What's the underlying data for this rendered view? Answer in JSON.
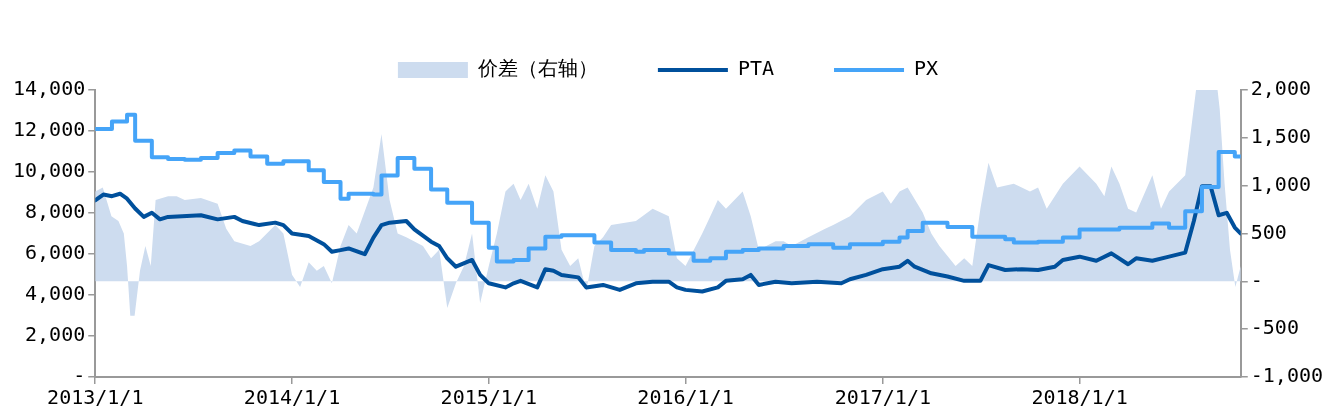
{
  "chart_data": {
    "type": "line",
    "legend": "top",
    "grid": false,
    "xlim": [
      "2013-01-01",
      "2018-10-27"
    ],
    "xticks": [
      {
        "value": "2013-01-01",
        "label": "2013/1/1"
      },
      {
        "value": "2014-01-01",
        "label": "2014/1/1"
      },
      {
        "value": "2015-01-01",
        "label": "2015/1/1"
      },
      {
        "value": "2016-01-01",
        "label": "2016/1/1"
      },
      {
        "value": "2017-01-01",
        "label": "2017/1/1"
      },
      {
        "value": "2018-01-01",
        "label": "2018/1/1"
      }
    ],
    "ylim": [
      0,
      14000
    ],
    "yticks": [
      {
        "value": 0,
        "label": "-"
      },
      {
        "value": 2000,
        "label": "2,000"
      },
      {
        "value": 4000,
        "label": "4,000"
      },
      {
        "value": 6000,
        "label": "6,000"
      },
      {
        "value": 8000,
        "label": "8,000"
      },
      {
        "value": 10000,
        "label": "10,000"
      },
      {
        "value": 12000,
        "label": "12,000"
      },
      {
        "value": 14000,
        "label": "14,000"
      }
    ],
    "y2lim": [
      -1000,
      2000
    ],
    "y2ticks": [
      {
        "value": -1000,
        "label": "-1,000"
      },
      -500,
      {
        "value": 0,
        "label": "-"
      },
      500,
      {
        "value": 1000,
        "label": "1,000"
      },
      {
        "value": 1500,
        "label": "1,500"
      },
      {
        "value": 2000,
        "label": "2,000"
      }
    ],
    "series": [
      {
        "name": "价差（右轴）",
        "type": "area",
        "axis": "y2",
        "color": "#cddcef",
        "x": [
          "2013-01-01",
          "2013-01-15",
          "2013-01-31",
          "2013-02-13",
          "2013-02-23",
          "2013-03-01",
          "2013-03-07",
          "2013-03-15",
          "2013-03-25",
          "2013-04-04",
          "2013-04-14",
          "2013-04-23",
          "2013-05-16",
          "2013-06-01",
          "2013-06-16",
          "2013-07-16",
          "2013-08-16",
          "2013-09-01",
          "2013-09-16",
          "2013-10-16",
          "2013-11-01",
          "2013-12-01",
          "2013-12-16",
          "2014-01-01",
          "2014-01-16",
          "2014-02-01",
          "2014-02-16",
          "2014-03-01",
          "2014-03-16",
          "2014-04-01",
          "2014-04-16",
          "2014-05-01",
          "2014-06-01",
          "2014-06-16",
          "2014-07-01",
          "2014-07-16",
          "2014-08-01",
          "2014-09-01",
          "2014-09-16",
          "2014-10-01",
          "2014-10-16",
          "2014-11-01",
          "2014-11-16",
          "2014-12-01",
          "2014-12-16",
          "2015-01-01",
          "2015-01-16",
          "2015-02-01",
          "2015-02-16",
          "2015-03-01",
          "2015-03-16",
          "2015-04-01",
          "2015-04-16",
          "2015-05-01",
          "2015-05-16",
          "2015-06-01",
          "2015-06-16",
          "2015-07-01",
          "2015-07-16",
          "2015-08-01",
          "2015-08-16",
          "2015-10-01",
          "2015-11-01",
          "2015-12-01",
          "2015-12-16",
          "2016-01-01",
          "2016-02-01",
          "2016-02-16",
          "2016-03-01",
          "2016-03-16",
          "2016-04-16",
          "2016-05-01",
          "2016-05-16",
          "2016-06-16",
          "2016-07-01",
          "2016-07-16",
          "2016-08-16",
          "2016-09-16",
          "2016-10-01",
          "2016-11-01",
          "2016-12-01",
          "2017-01-01",
          "2017-01-16",
          "2017-02-01",
          "2017-02-16",
          "2017-03-16",
          "2017-04-01",
          "2017-04-16",
          "2017-05-16",
          "2017-06-01",
          "2017-06-16",
          "2017-07-01",
          "2017-07-16",
          "2017-08-01",
          "2017-09-01",
          "2017-10-01",
          "2017-10-16",
          "2017-11-01",
          "2017-12-01",
          "2018-01-01",
          "2018-02-01",
          "2018-02-16",
          "2018-03-01",
          "2018-03-16",
          "2018-04-01",
          "2018-04-16",
          "2018-05-16",
          "2018-06-01",
          "2018-06-16",
          "2018-07-16",
          "2018-07-24",
          "2018-08-05",
          "2018-09-14",
          "2018-09-18",
          "2018-09-27",
          "2018-10-07",
          "2018-10-17",
          "2018-10-27"
        ],
        "values": [
          940,
          980,
          680,
          630,
          500,
          160,
          -360,
          -360,
          110,
          370,
          160,
          850,
          890,
          890,
          850,
          870,
          810,
          550,
          420,
          370,
          420,
          590,
          500,
          70,
          -60,
          200,
          110,
          160,
          -20,
          370,
          590,
          500,
          980,
          1540,
          850,
          500,
          460,
          370,
          240,
          330,
          -280,
          -20,
          160,
          500,
          -230,
          160,
          500,
          940,
          1020,
          850,
          1020,
          760,
          1110,
          940,
          330,
          160,
          240,
          -100,
          370,
          460,
          590,
          630,
          760,
          680,
          240,
          160,
          500,
          680,
          850,
          760,
          940,
          680,
          330,
          420,
          420,
          370,
          460,
          550,
          590,
          680,
          850,
          940,
          810,
          940,
          980,
          720,
          500,
          370,
          160,
          240,
          160,
          760,
          1240,
          980,
          1020,
          940,
          980,
          760,
          1020,
          1200,
          1020,
          890,
          1200,
          1020,
          760,
          720,
          1110,
          760,
          940,
          1110,
          1460,
          2000,
          2000,
          1800,
          1020,
          330,
          -60,
          160
        ]
      },
      {
        "name": "PTA",
        "type": "line",
        "color": "#00509c",
        "x": [
          "2013-01-01",
          "2013-01-16",
          "2013-02-01",
          "2013-02-16",
          "2013-03-01",
          "2013-03-16",
          "2013-04-01",
          "2013-04-16",
          "2013-05-01",
          "2013-05-16",
          "2013-07-16",
          "2013-08-16",
          "2013-09-16",
          "2013-10-01",
          "2013-11-01",
          "2013-12-01",
          "2013-12-16",
          "2014-01-01",
          "2014-02-01",
          "2014-03-01",
          "2014-03-16",
          "2014-04-01",
          "2014-04-16",
          "2014-05-16",
          "2014-06-01",
          "2014-06-16",
          "2014-07-01",
          "2014-08-01",
          "2014-08-16",
          "2014-09-16",
          "2014-10-01",
          "2014-10-16",
          "2014-11-01",
          "2014-12-01",
          "2014-12-16",
          "2015-01-01",
          "2015-02-01",
          "2015-02-16",
          "2015-03-01",
          "2015-04-01",
          "2015-04-16",
          "2015-05-01",
          "2015-05-16",
          "2015-06-16",
          "2015-07-01",
          "2015-08-01",
          "2015-09-01",
          "2015-10-01",
          "2015-11-01",
          "2015-12-01",
          "2015-12-16",
          "2016-01-01",
          "2016-02-01",
          "2016-03-01",
          "2016-03-16",
          "2016-04-16",
          "2016-05-01",
          "2016-05-16",
          "2016-06-16",
          "2016-07-16",
          "2016-09-01",
          "2016-10-16",
          "2016-11-01",
          "2016-12-01",
          "2017-01-01",
          "2017-02-01",
          "2017-02-16",
          "2017-03-01",
          "2017-04-01",
          "2017-05-01",
          "2017-06-01",
          "2017-07-01",
          "2017-07-16",
          "2017-08-16",
          "2017-09-16",
          "2017-10-16",
          "2017-11-16",
          "2017-12-01",
          "2018-01-01",
          "2018-02-01",
          "2018-03-01",
          "2018-04-01",
          "2018-04-16",
          "2018-05-16",
          "2018-06-16",
          "2018-07-16",
          "2018-08-01",
          "2018-08-16",
          "2018-09-01",
          "2018-09-16",
          "2018-10-01",
          "2018-10-16",
          "2018-10-27"
        ],
        "values": [
          8620,
          8900,
          8820,
          8940,
          8700,
          8220,
          7810,
          8010,
          7690,
          7810,
          7890,
          7690,
          7810,
          7610,
          7410,
          7530,
          7410,
          7000,
          6880,
          6480,
          6110,
          6190,
          6270,
          5990,
          6800,
          7410,
          7530,
          7610,
          7200,
          6600,
          6390,
          5790,
          5380,
          5710,
          4980,
          4570,
          4370,
          4570,
          4690,
          4370,
          5260,
          5180,
          4980,
          4860,
          4370,
          4490,
          4250,
          4570,
          4650,
          4650,
          4370,
          4250,
          4170,
          4370,
          4690,
          4770,
          4980,
          4490,
          4650,
          4570,
          4650,
          4570,
          4770,
          4980,
          5260,
          5380,
          5670,
          5380,
          5060,
          4900,
          4690,
          4690,
          5460,
          5220,
          5260,
          5220,
          5380,
          5710,
          5870,
          5670,
          6030,
          5500,
          5790,
          5670,
          5870,
          6070,
          7610,
          9310,
          9310,
          7890,
          8010,
          7290,
          7000
        ]
      },
      {
        "name": "PX",
        "type": "step",
        "color": "#45a4f8",
        "x": [
          "2013-01-01",
          "2013-02-01",
          "2013-03-01",
          "2013-03-16",
          "2013-04-16",
          "2013-05-16",
          "2013-06-16",
          "2013-07-16",
          "2013-08-16",
          "2013-09-16",
          "2013-10-16",
          "2013-11-16",
          "2013-12-16",
          "2014-02-01",
          "2014-03-01",
          "2014-04-01",
          "2014-04-16",
          "2014-06-01",
          "2014-06-16",
          "2014-07-16",
          "2014-08-16",
          "2014-09-16",
          "2014-10-16",
          "2014-12-01",
          "2015-01-01",
          "2015-01-16",
          "2015-02-16",
          "2015-03-16",
          "2015-04-16",
          "2015-05-16",
          "2015-07-16",
          "2015-08-16",
          "2015-10-01",
          "2015-10-16",
          "2015-12-01",
          "2016-01-16",
          "2016-02-16",
          "2016-03-16",
          "2016-04-16",
          "2016-05-16",
          "2016-07-01",
          "2016-08-16",
          "2016-10-01",
          "2016-11-01",
          "2017-01-01",
          "2017-02-01",
          "2017-02-16",
          "2017-03-16",
          "2017-05-01",
          "2017-06-16",
          "2017-08-16",
          "2017-09-01",
          "2017-10-16",
          "2017-12-01",
          "2018-01-01",
          "2018-03-16",
          "2018-05-16",
          "2018-06-16",
          "2018-07-16",
          "2018-08-16",
          "2018-09-16",
          "2018-10-16",
          "2018-10-27"
        ],
        "values": [
          12100,
          12460,
          12790,
          11530,
          10720,
          10640,
          10600,
          10680,
          10930,
          11050,
          10760,
          10400,
          10520,
          10080,
          9510,
          8700,
          8940,
          8900,
          9830,
          10680,
          10160,
          9150,
          8500,
          7530,
          6310,
          5630,
          5710,
          6270,
          6840,
          6920,
          6560,
          6190,
          6110,
          6190,
          6030,
          5670,
          5790,
          6110,
          6190,
          6270,
          6390,
          6480,
          6310,
          6480,
          6600,
          6800,
          7120,
          7530,
          7320,
          6840,
          6720,
          6560,
          6600,
          6800,
          7200,
          7280,
          7490,
          7280,
          8090,
          9270,
          10970,
          10760,
          10760
        ]
      }
    ]
  }
}
